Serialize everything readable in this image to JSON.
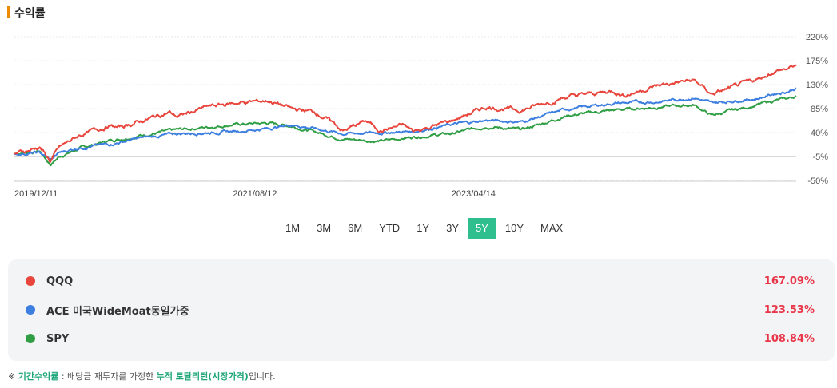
{
  "header": {
    "title": "수익률"
  },
  "chart_data": {
    "type": "line",
    "ylim": [
      -50,
      220
    ],
    "yticks": [
      "220%",
      "175%",
      "130%",
      "85%",
      "40%",
      "-5%",
      "-50%"
    ],
    "xticks": [
      "2019/12/11",
      "2021/08/12",
      "2023/04/14"
    ],
    "series": [
      {
        "name": "QQQ",
        "color": "#e8453c",
        "x": [
          "2019/12/11",
          "2020/02/01",
          "2020/02/20",
          "2020/03/20",
          "2020/04/15",
          "2020/06/10",
          "2020/09/01",
          "2020/09/25",
          "2020/12/01",
          "2021/02/15",
          "2021/03/10",
          "2021/06/01",
          "2021/08/12",
          "2021/11/20",
          "2022/01/25",
          "2022/03/29",
          "2022/05/20",
          "2022/06/16",
          "2022/08/16",
          "2022/09/30",
          "2022/11/30",
          "2022/12/28",
          "2023/04/14",
          "2023/07/20",
          "2023/10/26",
          "2023/12/28",
          "2024/03/01",
          "2024/07/10",
          "2024/08/05",
          "2024/11/10",
          "2025/01/15",
          "2025/02/19",
          "2025/04/08",
          "2025/06/10",
          "2025/08/15",
          "2025/10/01",
          "2025/11/10",
          "2025/12/01"
        ],
        "y": [
          0,
          9,
          13,
          -14,
          12,
          35,
          53,
          49,
          62,
          78,
          70,
          88,
          95,
          100,
          84,
          79,
          58,
          43,
          62,
          44,
          54,
          42,
          62,
          88,
          82,
          95,
          107,
          118,
          110,
          128,
          135,
          138,
          112,
          125,
          140,
          155,
          160,
          167.09
        ]
      },
      {
        "name": "ACE 미국WideMoat동일가중",
        "color": "#3d7fe0",
        "x": [
          "2019/12/11",
          "2020/02/20",
          "2020/03/20",
          "2020/04/15",
          "2020/06/10",
          "2020/09/01",
          "2020/12/01",
          "2021/03/10",
          "2021/08/12",
          "2021/11/20",
          "2022/01/25",
          "2022/06/16",
          "2022/09/30",
          "2022/12/28",
          "2023/04/14",
          "2023/07/20",
          "2023/10/26",
          "2023/12/28",
          "2024/03/01",
          "2024/07/10",
          "2024/11/10",
          "2025/02/19",
          "2025/04/08",
          "2025/06/10",
          "2025/08/15",
          "2025/10/01",
          "2025/11/10",
          "2025/12/01"
        ],
        "y": [
          0,
          2,
          -12,
          2,
          12,
          18,
          30,
          38,
          42,
          48,
          55,
          38,
          40,
          42,
          55,
          63,
          60,
          72,
          84,
          95,
          98,
          106,
          95,
          100,
          104,
          113,
          118,
          123.53
        ]
      },
      {
        "name": "SPY",
        "color": "#2f9e44",
        "x": [
          "2019/12/11",
          "2020/02/20",
          "2020/03/20",
          "2020/04/15",
          "2020/06/10",
          "2020/09/01",
          "2020/12/01",
          "2021/03/10",
          "2021/08/12",
          "2021/11/20",
          "2022/01/25",
          "2022/06/16",
          "2022/09/30",
          "2022/12/28",
          "2023/04/14",
          "2023/07/20",
          "2023/10/26",
          "2023/12/28",
          "2024/03/01",
          "2024/07/10",
          "2024/11/10",
          "2025/02/19",
          "2025/04/08",
          "2025/06/10",
          "2025/08/15",
          "2025/10/01",
          "2025/11/10",
          "2025/12/01"
        ],
        "y": [
          0,
          5,
          -20,
          -5,
          10,
          25,
          35,
          45,
          55,
          58,
          52,
          28,
          24,
          32,
          38,
          52,
          45,
          58,
          72,
          82,
          88,
          92,
          72,
          82,
          92,
          100,
          104,
          108.84
        ]
      }
    ]
  },
  "ranges": {
    "items": [
      "1M",
      "3M",
      "6M",
      "YTD",
      "1Y",
      "3Y",
      "5Y",
      "10Y",
      "MAX"
    ],
    "active": "5Y"
  },
  "legend": [
    {
      "name": "QQQ",
      "value": "167.09%",
      "color": "#e8453c"
    },
    {
      "name": "ACE 미국WideMoat동일가중",
      "value": "123.53%",
      "color": "#3d7fe0"
    },
    {
      "name": "SPY",
      "value": "108.84%",
      "color": "#2f9e44"
    }
  ],
  "footnote": {
    "mark": "※",
    "term": "기간수익률",
    "middle": " : 배당금 재투자를 가정한 ",
    "term2": "누적 토탈리턴(시장가격)",
    "end": "입니다."
  }
}
